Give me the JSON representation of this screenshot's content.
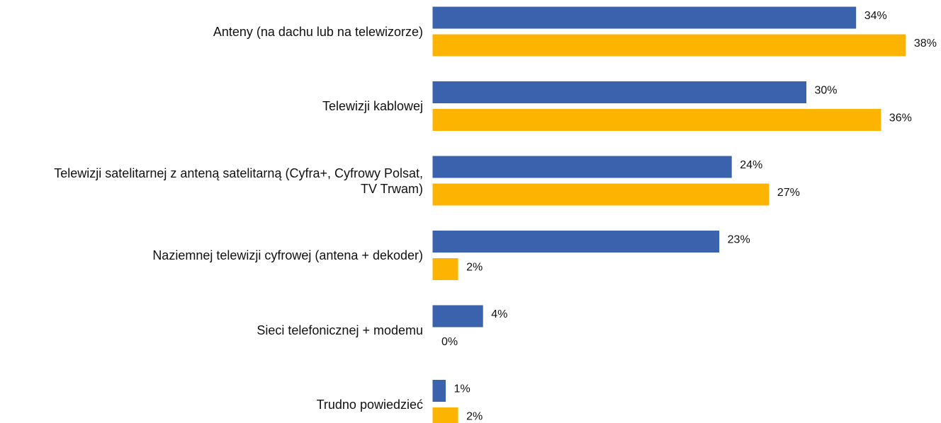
{
  "chart_data": {
    "type": "hbar",
    "categories": [
      "Anteny (na dachu lub na telewizorze)",
      "Telewizji kablowej",
      "Telewizji satelitarnej z anteną satelitarną (Cyfra+, Cyfrowy Polsat,\nTV Trwam)",
      "Naziemnej telewizji cyfrowej (antena + dekoder)",
      "Sieci telefonicznej + modemu",
      "Trudno powiedzieć"
    ],
    "series": [
      {
        "color": "#3a62ad",
        "values": [
          34,
          30,
          24,
          23,
          4,
          1
        ],
        "value_labels": [
          "34%",
          "30%",
          "24%",
          "23%",
          "4%",
          "1%"
        ]
      },
      {
        "color": "#fdb400",
        "values": [
          38,
          36,
          27,
          2,
          0,
          2
        ],
        "value_labels": [
          "38%",
          "36%",
          "27%",
          "2%",
          "0%",
          "2%"
        ]
      }
    ],
    "xlim": [
      0,
      40
    ]
  }
}
